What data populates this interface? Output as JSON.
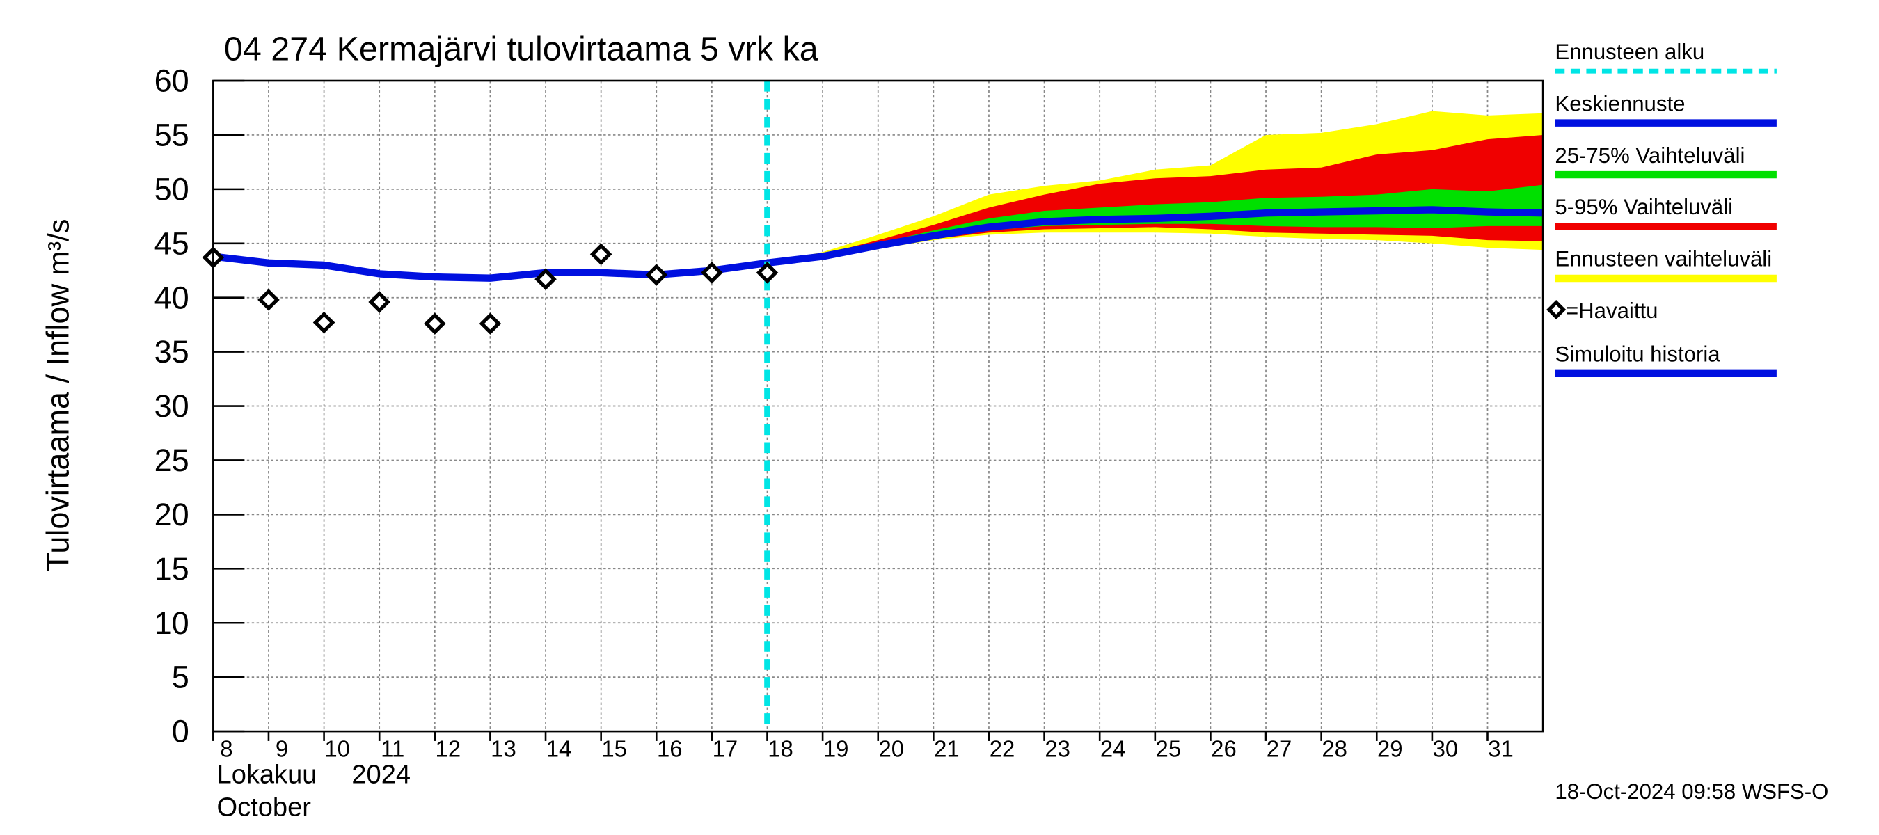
{
  "chart_data": {
    "type": "line",
    "title": "04 274 Kermajärvi tulovirtaama 5 vrk ka",
    "y_label": "Tulovirtaama / Inflow",
    "y_unit": "m³/s",
    "month_fi": "Lokakuu",
    "year": "2024",
    "month_en": "October",
    "footer": "18-Oct-2024 09:58 WSFS-O",
    "xlim": [
      8,
      32
    ],
    "xticks": [
      8,
      9,
      10,
      11,
      12,
      13,
      14,
      15,
      16,
      17,
      18,
      19,
      20,
      21,
      22,
      23,
      24,
      25,
      26,
      27,
      28,
      29,
      30,
      31
    ],
    "ylim": [
      0,
      60
    ],
    "yticks": [
      0,
      5,
      10,
      15,
      20,
      25,
      30,
      35,
      40,
      45,
      50,
      55,
      60
    ],
    "grid": true,
    "forecast_start": {
      "name": "Ennusteen alku",
      "x": 18,
      "color": "#00e5e5"
    },
    "series": [
      {
        "name": "Keskiennuste",
        "kind": "line",
        "color": "#0010e0",
        "x": [
          18,
          19,
          20,
          21,
          22,
          23,
          24,
          25,
          26,
          27,
          28,
          29,
          30,
          31,
          32
        ],
        "values": [
          43.2,
          43.8,
          44.8,
          45.7,
          46.5,
          47.0,
          47.2,
          47.3,
          47.5,
          47.8,
          47.9,
          48.0,
          48.1,
          47.9,
          47.8
        ]
      },
      {
        "name": "25-75% Vaihteluväli",
        "kind": "band",
        "color": "#00e000",
        "x": [
          18,
          19,
          20,
          21,
          22,
          23,
          24,
          25,
          26,
          27,
          28,
          29,
          30,
          31,
          32
        ],
        "upper": [
          43.2,
          43.9,
          45.0,
          46.2,
          47.3,
          48.0,
          48.3,
          48.6,
          48.8,
          49.2,
          49.3,
          49.5,
          50.0,
          49.8,
          50.4
        ],
        "lower": [
          43.2,
          43.7,
          44.7,
          45.5,
          46.2,
          46.6,
          46.7,
          46.8,
          46.8,
          46.6,
          46.5,
          46.5,
          46.4,
          46.6,
          46.6
        ]
      },
      {
        "name": "5-95% Vaihteluväli",
        "kind": "band",
        "color": "#f00000",
        "x": [
          18,
          19,
          20,
          21,
          22,
          23,
          24,
          25,
          26,
          27,
          28,
          29,
          30,
          31,
          32
        ],
        "upper": [
          43.2,
          44.0,
          45.3,
          46.7,
          48.3,
          49.5,
          50.5,
          51.0,
          51.2,
          51.8,
          52.0,
          53.2,
          53.6,
          54.6,
          55.0
        ],
        "lower": [
          43.2,
          43.7,
          44.6,
          45.4,
          46.0,
          46.3,
          46.4,
          46.5,
          46.3,
          46.0,
          45.9,
          45.8,
          45.7,
          45.3,
          45.2
        ]
      },
      {
        "name": "Ennusteen vaihteluväli",
        "kind": "band",
        "color": "#ffff00",
        "x": [
          18,
          19,
          20,
          21,
          22,
          23,
          24,
          25,
          26,
          27,
          28,
          29,
          30,
          31,
          32
        ],
        "upper": [
          43.2,
          44.2,
          45.8,
          47.5,
          49.5,
          50.3,
          50.8,
          51.8,
          52.2,
          55.0,
          55.2,
          56.0,
          57.2,
          56.8,
          57.0
        ],
        "lower": [
          43.2,
          43.6,
          44.5,
          45.3,
          45.8,
          46.0,
          46.0,
          46.0,
          45.9,
          45.6,
          45.4,
          45.3,
          45.0,
          44.6,
          44.4
        ]
      },
      {
        "name": "=Havaittu",
        "kind": "marker",
        "color": "#000000",
        "x": [
          8,
          9,
          10,
          11,
          12,
          13,
          14,
          15,
          16,
          17,
          18
        ],
        "values": [
          43.7,
          39.8,
          37.7,
          39.6,
          37.6,
          37.6,
          41.7,
          44.0,
          42.1,
          42.3,
          42.3
        ]
      },
      {
        "name": "Simuloitu historia",
        "kind": "line",
        "color": "#0010e0",
        "x": [
          8,
          9,
          10,
          11,
          12,
          13,
          14,
          15,
          16,
          17,
          18
        ],
        "values": [
          43.8,
          43.2,
          43.0,
          42.2,
          41.9,
          41.8,
          42.3,
          42.3,
          42.1,
          42.5,
          43.2
        ]
      }
    ]
  }
}
